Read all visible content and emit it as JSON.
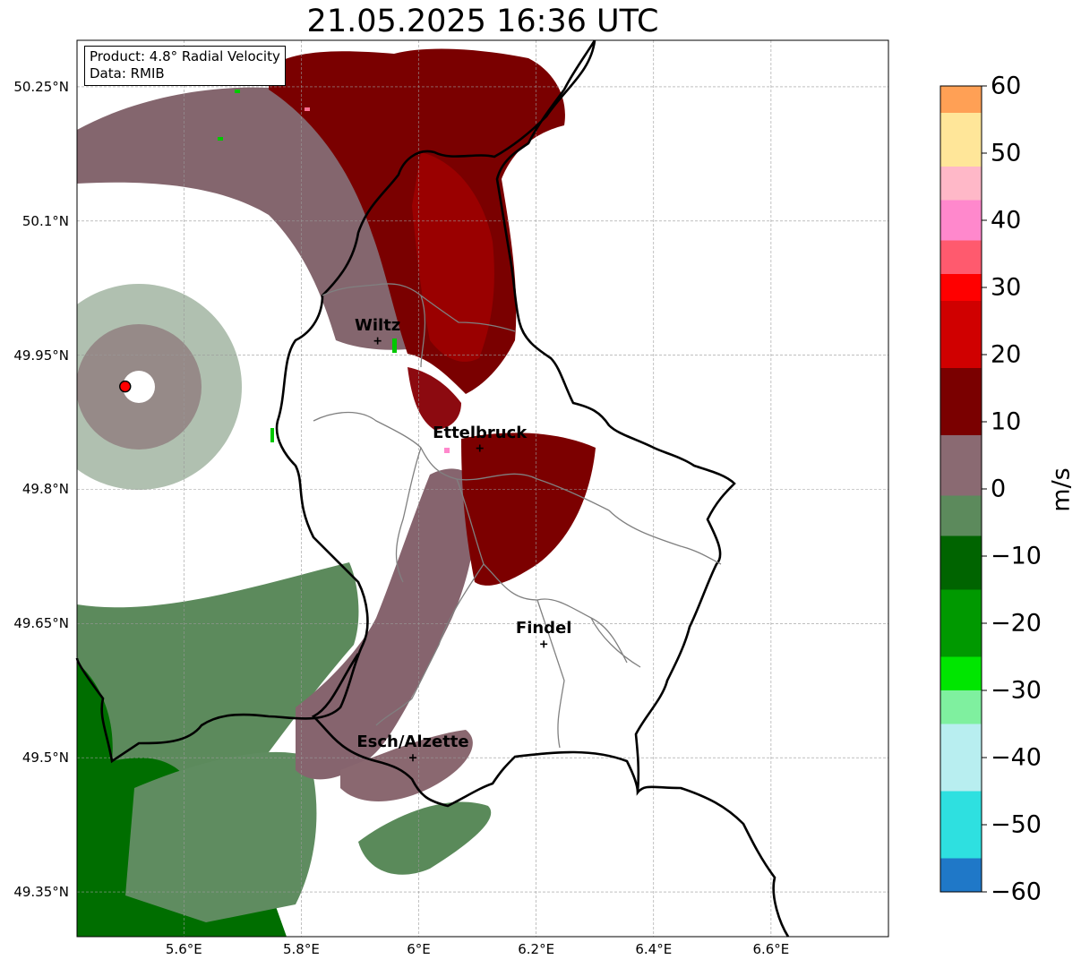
{
  "title": "21.05.2025 16:36 UTC",
  "info": {
    "product": "Product: 4.8° Radial Velocity",
    "data": "Data: RMIB"
  },
  "axes": {
    "lon_range": [
      5.418,
      6.8
    ],
    "lat_range": [
      49.3,
      50.302
    ],
    "x_ticks": [
      {
        "value": 5.6,
        "label": "5.6°E"
      },
      {
        "value": 5.8,
        "label": "5.8°E"
      },
      {
        "value": 6.0,
        "label": "6°E"
      },
      {
        "value": 6.2,
        "label": "6.2°E"
      },
      {
        "value": 6.4,
        "label": "6.4°E"
      },
      {
        "value": 6.6,
        "label": "6.6°E"
      }
    ],
    "y_ticks": [
      {
        "value": 49.35,
        "label": "49.35°N"
      },
      {
        "value": 49.5,
        "label": "49.5°N"
      },
      {
        "value": 49.65,
        "label": "49.65°N"
      },
      {
        "value": 49.8,
        "label": "49.8°N"
      },
      {
        "value": 49.95,
        "label": "49.95°N"
      },
      {
        "value": 50.1,
        "label": "50.1°N"
      },
      {
        "value": 50.25,
        "label": "50.25°N"
      }
    ],
    "grid": true
  },
  "places": [
    {
      "name": "Wiltz",
      "lon": 5.93,
      "lat": 49.966
    },
    {
      "name": "Ettelbruck",
      "lon": 6.104,
      "lat": 49.846
    },
    {
      "name": "Findel",
      "lon": 6.213,
      "lat": 49.627
    },
    {
      "name": "Esch/Alzette",
      "lon": 5.99,
      "lat": 49.5
    }
  ],
  "radar_site": {
    "lon": 5.5,
    "lat": 49.915,
    "color": "#ff0000"
  },
  "colorbar": {
    "label": "m/s",
    "min": -60,
    "max": 60,
    "ticks": [
      60,
      50,
      40,
      30,
      20,
      10,
      0,
      -10,
      -20,
      -30,
      -40,
      -50,
      -60
    ],
    "tick_labels": [
      "60",
      "50",
      "40",
      "30",
      "20",
      "10",
      "0",
      "−10",
      "−20",
      "−30",
      "−40",
      "−50",
      "−60"
    ],
    "colors": {
      "blue": "#1f78c8",
      "cyan": "#2ee0e0",
      "light_cyan": "#b8eef0",
      "light_green": "#7ff09f",
      "bright_green": "#00e600",
      "green": "#009900",
      "dark_green": "#006400",
      "sage": "#5c8a5c",
      "mauve": "#8a6a72",
      "maroon": "#7a0000",
      "red": "#d00000",
      "bright_red": "#ff0000",
      "salmon": "#ff5a6e",
      "pink": "#ff88cc",
      "light_pink": "#ffb8c8",
      "light_yellow": "#ffe699",
      "orange": "#ffa055"
    }
  }
}
